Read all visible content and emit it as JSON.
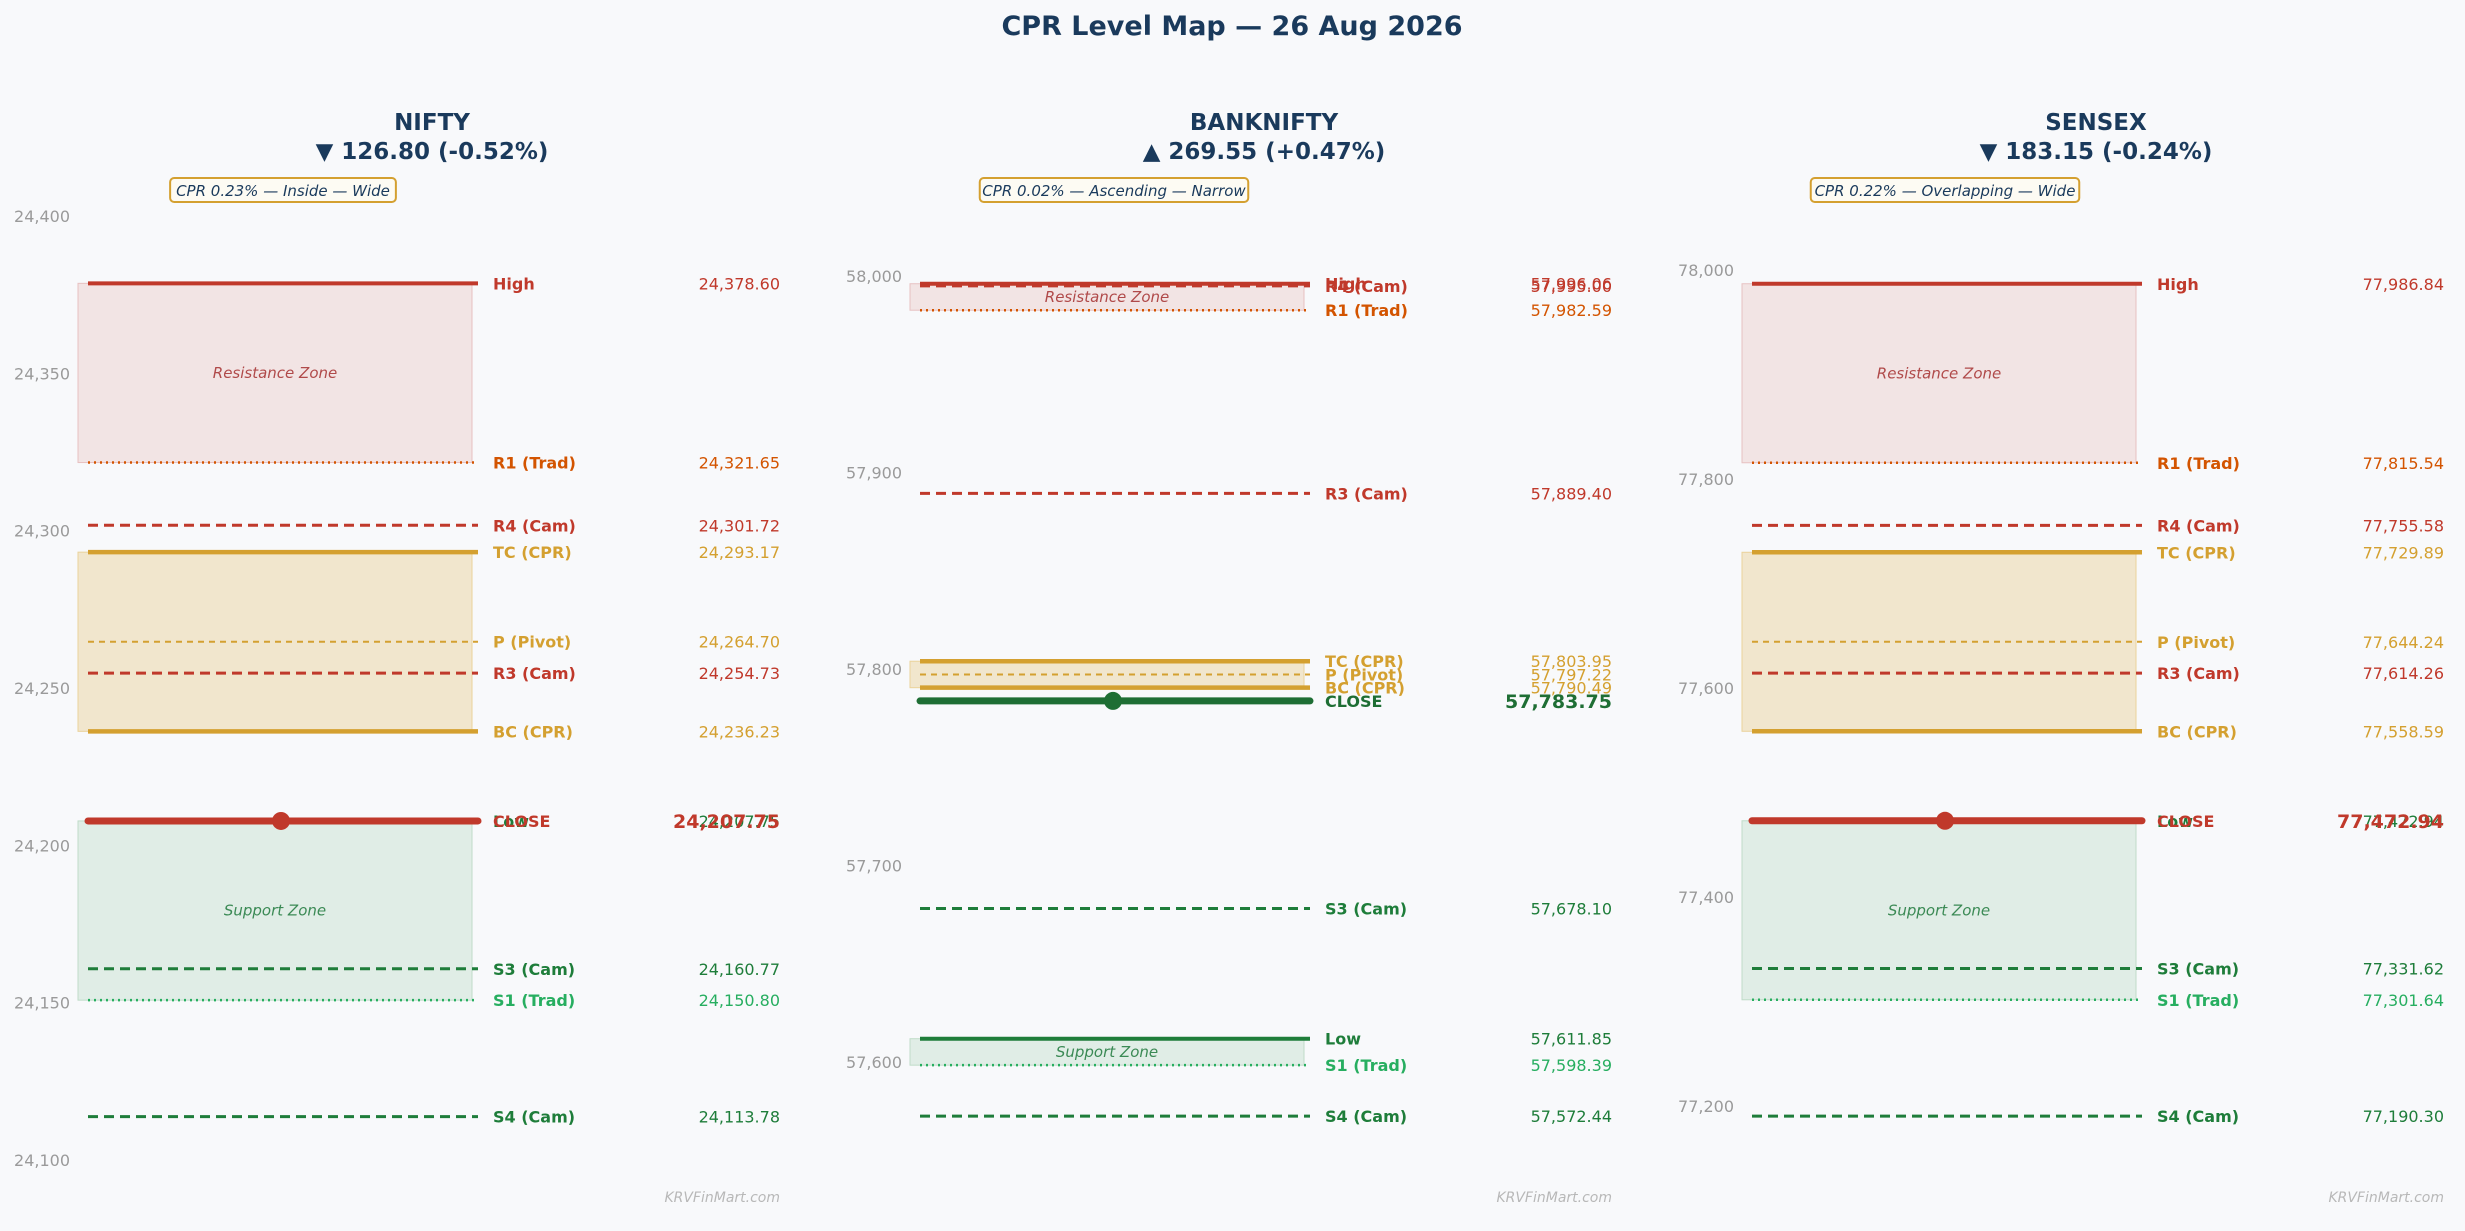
{
  "title": "CPR Level Map — 26 Aug 2026",
  "watermark": "KRVFinMart.com",
  "colors": {
    "text_dark": "#1a3a5c",
    "resistance": "#c0392b",
    "r1": "#d35400",
    "cpr": "#d4a030",
    "support": "#1e7d3a",
    "s1": "#27ae60",
    "close_up": "#1e6e34",
    "close_down": "#c0392b",
    "resistance_zone_fill": "#f2e4e4",
    "support_zone_fill": "#e0ede6",
    "cpr_zone_fill": "#f1e6cd",
    "tick": "#9a9a9a"
  },
  "chart_data": [
    {
      "type": "level-map",
      "index": "NIFTY",
      "change_text": "▼ 126.80 (-0.52%)",
      "direction": "down",
      "badge": "CPR 0.23% — Inside — Wide",
      "ylim": [
        24100,
        24400
      ],
      "yticks": [
        24100,
        24150,
        24200,
        24250,
        24300,
        24350,
        24400
      ],
      "ytick_labels": [
        "24,100",
        "24,150",
        "24,200",
        "24,250",
        "24,300",
        "24,350",
        "24,400"
      ],
      "zones": [
        {
          "kind": "resistance",
          "label": "Resistance Zone",
          "from": 24321.65,
          "to": 24378.6
        },
        {
          "kind": "cpr",
          "label": "",
          "from": 24236.23,
          "to": 24293.17
        },
        {
          "kind": "support",
          "label": "Support Zone",
          "from": 24150.8,
          "to": 24207.75
        }
      ],
      "levels": [
        {
          "name": "High",
          "value": 24378.6,
          "value_text": "24,378.60",
          "kind": "resistance",
          "style": "solid"
        },
        {
          "name": "R1 (Trad)",
          "value": 24321.65,
          "value_text": "24,321.65",
          "kind": "r1",
          "style": "dotted"
        },
        {
          "name": "R4 (Cam)",
          "value": 24301.72,
          "value_text": "24,301.72",
          "kind": "resistance",
          "style": "dashed"
        },
        {
          "name": "TC (CPR)",
          "value": 24293.17,
          "value_text": "24,293.17",
          "kind": "cpr",
          "style": "solid"
        },
        {
          "name": "P (Pivot)",
          "value": 24264.7,
          "value_text": "24,264.70",
          "kind": "cpr",
          "style": "thin-dashed"
        },
        {
          "name": "R3 (Cam)",
          "value": 24254.73,
          "value_text": "24,254.73",
          "kind": "resistance",
          "style": "dashed"
        },
        {
          "name": "BC (CPR)",
          "value": 24236.23,
          "value_text": "24,236.23",
          "kind": "cpr",
          "style": "solid"
        },
        {
          "name": "Low",
          "value": 24207.75,
          "value_text": "24,207.75",
          "kind": "support",
          "style": "solid"
        },
        {
          "name": "S3 (Cam)",
          "value": 24160.77,
          "value_text": "24,160.77",
          "kind": "support",
          "style": "dashed"
        },
        {
          "name": "S1 (Trad)",
          "value": 24150.8,
          "value_text": "24,150.80",
          "kind": "s1",
          "style": "dotted"
        },
        {
          "name": "S4 (Cam)",
          "value": 24113.78,
          "value_text": "24,113.78",
          "kind": "support",
          "style": "dashed"
        }
      ],
      "close": {
        "name": "CLOSE",
        "value": 24207.75,
        "value_text": "24,207.75"
      }
    },
    {
      "type": "level-map",
      "index": "BANKNIFTY",
      "change_text": "▲ 269.55 (+0.47%)",
      "direction": "up",
      "badge": "CPR 0.02% — Ascending — Narrow",
      "ylim": [
        57570,
        58000
      ],
      "yticks": [
        57600,
        57700,
        57800,
        57900,
        58000
      ],
      "ytick_labels": [
        "57,600",
        "57,700",
        "57,800",
        "57,900",
        "58,000"
      ],
      "zones": [
        {
          "kind": "resistance",
          "label": "Resistance Zone",
          "from": 57982.59,
          "to": 57996.06
        },
        {
          "kind": "cpr",
          "label": "",
          "from": 57790.49,
          "to": 57803.95
        },
        {
          "kind": "support",
          "label": "Support Zone",
          "from": 57598.39,
          "to": 57611.85
        }
      ],
      "levels": [
        {
          "name": "High",
          "value": 57996.06,
          "value_text": "57,996.06",
          "kind": "resistance",
          "style": "solid"
        },
        {
          "name": "R4 (Cam)",
          "value": 57995.0,
          "value_text": "57,995.00",
          "kind": "resistance",
          "style": "dashed"
        },
        {
          "name": "R1 (Trad)",
          "value": 57982.59,
          "value_text": "57,982.59",
          "kind": "r1",
          "style": "dotted"
        },
        {
          "name": "R3 (Cam)",
          "value": 57889.4,
          "value_text": "57,889.40",
          "kind": "resistance",
          "style": "dashed"
        },
        {
          "name": "TC (CPR)",
          "value": 57803.95,
          "value_text": "57,803.95",
          "kind": "cpr",
          "style": "solid"
        },
        {
          "name": "P (Pivot)",
          "value": 57797.22,
          "value_text": "57,797.22",
          "kind": "cpr",
          "style": "thin-dashed"
        },
        {
          "name": "BC (CPR)",
          "value": 57790.49,
          "value_text": "57,790.49",
          "kind": "cpr",
          "style": "solid"
        },
        {
          "name": "S3 (Cam)",
          "value": 57678.1,
          "value_text": "57,678.10",
          "kind": "support",
          "style": "dashed"
        },
        {
          "name": "Low",
          "value": 57611.85,
          "value_text": "57,611.85",
          "kind": "support",
          "style": "solid"
        },
        {
          "name": "S1 (Trad)",
          "value": 57598.39,
          "value_text": "57,598.39",
          "kind": "s1",
          "style": "dotted"
        },
        {
          "name": "S4 (Cam)",
          "value": 57572.44,
          "value_text": "57,572.44",
          "kind": "support",
          "style": "dashed"
        }
      ],
      "close": {
        "name": "CLOSE",
        "value": 57783.75,
        "value_text": "57,783.75"
      }
    },
    {
      "type": "level-map",
      "index": "SENSEX",
      "change_text": "▼ 183.15 (-0.24%)",
      "direction": "down",
      "badge": "CPR 0.22% — Overlapping — Wide",
      "ylim": [
        77160,
        78010
      ],
      "yticks": [
        77200,
        77400,
        77600,
        77800,
        78000
      ],
      "ytick_labels": [
        "77,200",
        "77,400",
        "77,600",
        "77,800",
        "78,000"
      ],
      "zones": [
        {
          "kind": "resistance",
          "label": "Resistance Zone",
          "from": 77815.54,
          "to": 77986.84
        },
        {
          "kind": "cpr",
          "label": "",
          "from": 77558.59,
          "to": 77729.89
        },
        {
          "kind": "support",
          "label": "Support Zone",
          "from": 77301.64,
          "to": 77472.94
        }
      ],
      "levels": [
        {
          "name": "High",
          "value": 77986.84,
          "value_text": "77,986.84",
          "kind": "resistance",
          "style": "solid"
        },
        {
          "name": "R1 (Trad)",
          "value": 77815.54,
          "value_text": "77,815.54",
          "kind": "r1",
          "style": "dotted"
        },
        {
          "name": "R4 (Cam)",
          "value": 77755.58,
          "value_text": "77,755.58",
          "kind": "resistance",
          "style": "dashed"
        },
        {
          "name": "TC (CPR)",
          "value": 77729.89,
          "value_text": "77,729.89",
          "kind": "cpr",
          "style": "solid"
        },
        {
          "name": "P (Pivot)",
          "value": 77644.24,
          "value_text": "77,644.24",
          "kind": "cpr",
          "style": "thin-dashed"
        },
        {
          "name": "R3 (Cam)",
          "value": 77614.26,
          "value_text": "77,614.26",
          "kind": "resistance",
          "style": "dashed"
        },
        {
          "name": "BC (CPR)",
          "value": 77558.59,
          "value_text": "77,558.59",
          "kind": "cpr",
          "style": "solid"
        },
        {
          "name": "Low",
          "value": 77472.94,
          "value_text": "77,472.94",
          "kind": "support",
          "style": "solid"
        },
        {
          "name": "S3 (Cam)",
          "value": 77331.62,
          "value_text": "77,331.62",
          "kind": "support",
          "style": "dashed"
        },
        {
          "name": "S1 (Trad)",
          "value": 77301.64,
          "value_text": "77,301.64",
          "kind": "s1",
          "style": "dotted"
        },
        {
          "name": "S4 (Cam)",
          "value": 77190.3,
          "value_text": "77,190.30",
          "kind": "support",
          "style": "dashed"
        }
      ],
      "close": {
        "name": "CLOSE",
        "value": 77472.94,
        "value_text": "77,472.94"
      }
    }
  ]
}
